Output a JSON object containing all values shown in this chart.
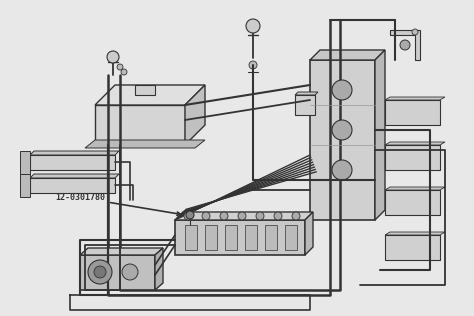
{
  "background_color": "#e8e8e8",
  "line_color": "#333333",
  "label_text": "12-0301780",
  "figsize": [
    4.74,
    3.16
  ],
  "dpi": 100,
  "border_color": "#cccccc"
}
